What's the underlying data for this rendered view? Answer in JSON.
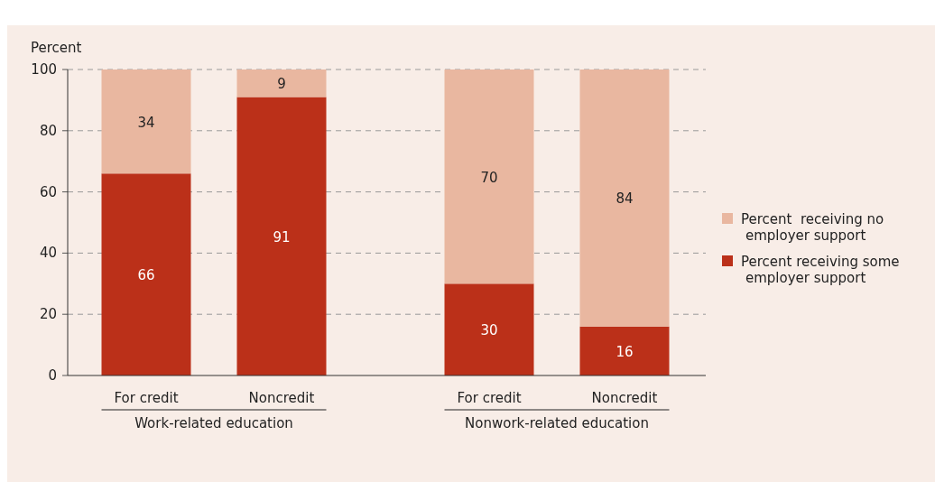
{
  "chart_data": {
    "type": "bar",
    "stacked": true,
    "ylabel": "Percent",
    "categories": [
      "For credit",
      "Noncredit",
      "For credit",
      "Noncredit"
    ],
    "series": [
      {
        "name": "Percent receiving some employer support",
        "color": "#bb3019",
        "values": [
          66,
          91,
          30,
          16
        ]
      },
      {
        "name": "Percent  receiving no employer support",
        "color": "#e9b7a0",
        "values": [
          34,
          9,
          70,
          84
        ]
      }
    ],
    "ylim": [
      0,
      100
    ],
    "yticks": [
      0,
      20,
      40,
      60,
      80,
      100
    ],
    "grid": "y",
    "legend": "right",
    "data_labels": true,
    "annotations": [
      "Work-related education",
      "Nonwork-related education"
    ]
  }
}
